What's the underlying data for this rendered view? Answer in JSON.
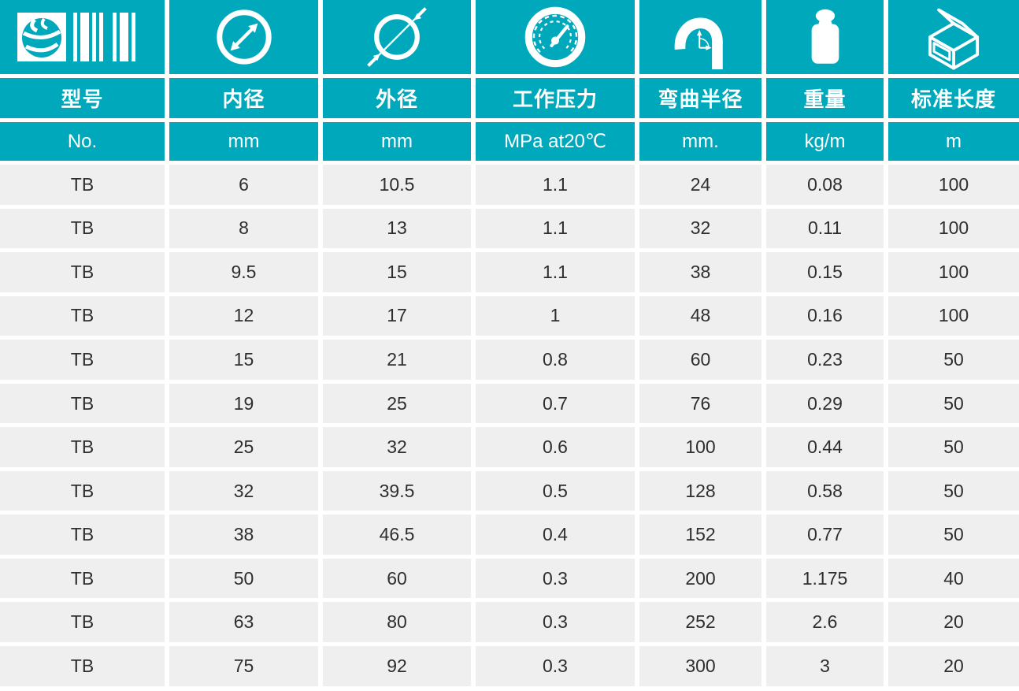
{
  "theme": {
    "accent_teal": "#00a8bc",
    "row_gray": "#efefef",
    "header_text": "#ffffff",
    "data_text": "#2e2e2e"
  },
  "table": {
    "columns": [
      {
        "icon": "brand-barcode-icon",
        "label": "型号",
        "unit": "No."
      },
      {
        "icon": "inner-diameter-icon",
        "label": "内径",
        "unit": "mm"
      },
      {
        "icon": "outer-diameter-icon",
        "label": "外径",
        "unit": "mm"
      },
      {
        "icon": "pressure-gauge-icon",
        "label": "工作压力",
        "unit": "MPa at20℃"
      },
      {
        "icon": "bend-radius-icon",
        "label": "弯曲半径",
        "unit": "mm."
      },
      {
        "icon": "weight-icon",
        "label": "重量",
        "unit": "kg/m"
      },
      {
        "icon": "carton-box-icon",
        "label": "标准长度",
        "unit": "m"
      }
    ],
    "rows": [
      [
        "TB",
        "6",
        "10.5",
        "1.1",
        "24",
        "0.08",
        "100"
      ],
      [
        "TB",
        "8",
        "13",
        "1.1",
        "32",
        "0.11",
        "100"
      ],
      [
        "TB",
        "9.5",
        "15",
        "1.1",
        "38",
        "0.15",
        "100"
      ],
      [
        "TB",
        "12",
        "17",
        "1",
        "48",
        "0.16",
        "100"
      ],
      [
        "TB",
        "15",
        "21",
        "0.8",
        "60",
        "0.23",
        "50"
      ],
      [
        "TB",
        "19",
        "25",
        "0.7",
        "76",
        "0.29",
        "50"
      ],
      [
        "TB",
        "25",
        "32",
        "0.6",
        "100",
        "0.44",
        "50"
      ],
      [
        "TB",
        "32",
        "39.5",
        "0.5",
        "128",
        "0.58",
        "50"
      ],
      [
        "TB",
        "38",
        "46.5",
        "0.4",
        "152",
        "0.77",
        "50"
      ],
      [
        "TB",
        "50",
        "60",
        "0.3",
        "200",
        "1.175",
        "40"
      ],
      [
        "TB",
        "63",
        "80",
        "0.3",
        "252",
        "2.6",
        "20"
      ],
      [
        "TB",
        "75",
        "92",
        "0.3",
        "300",
        "3",
        "20"
      ]
    ]
  },
  "chart_data": {
    "type": "table",
    "columns": [
      "型号 (No.)",
      "内径 (mm)",
      "外径 (mm)",
      "工作压力 (MPa at20℃)",
      "弯曲半径 (mm.)",
      "重量 (kg/m)",
      "标准长度 (m)"
    ],
    "rows": [
      [
        "TB",
        6,
        10.5,
        1.1,
        24,
        0.08,
        100
      ],
      [
        "TB",
        8,
        13,
        1.1,
        32,
        0.11,
        100
      ],
      [
        "TB",
        9.5,
        15,
        1.1,
        38,
        0.15,
        100
      ],
      [
        "TB",
        12,
        17,
        1,
        48,
        0.16,
        100
      ],
      [
        "TB",
        15,
        21,
        0.8,
        60,
        0.23,
        50
      ],
      [
        "TB",
        19,
        25,
        0.7,
        76,
        0.29,
        50
      ],
      [
        "TB",
        25,
        32,
        0.6,
        100,
        0.44,
        50
      ],
      [
        "TB",
        32,
        39.5,
        0.5,
        128,
        0.58,
        50
      ],
      [
        "TB",
        38,
        46.5,
        0.4,
        152,
        0.77,
        50
      ],
      [
        "TB",
        50,
        60,
        0.3,
        200,
        1.175,
        40
      ],
      [
        "TB",
        63,
        80,
        0.3,
        252,
        2.6,
        20
      ],
      [
        "TB",
        75,
        92,
        0.3,
        300,
        3,
        20
      ]
    ]
  }
}
